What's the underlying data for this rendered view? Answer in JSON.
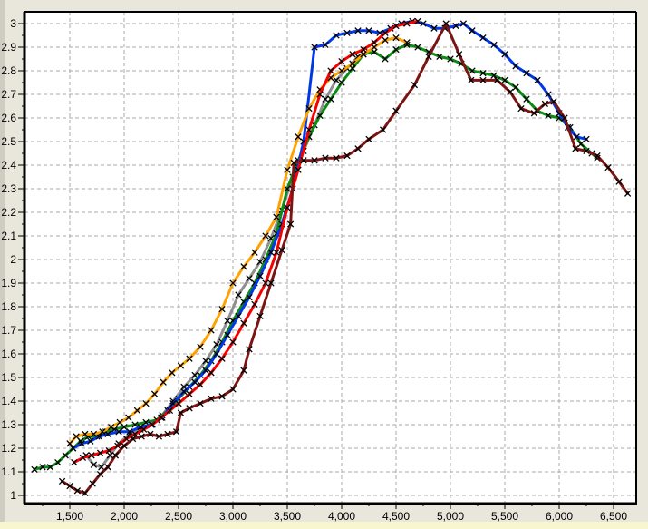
{
  "window": {
    "margin_color": "#e9e6dc",
    "left_edge_color": "#cfccc1",
    "bottom_strip_color": "#f7f6cf",
    "plot_background": "#ffffff",
    "grid_color": "#a8a8a8",
    "axis_color": "#000000",
    "marker_color": "#000000"
  },
  "chart_data": {
    "type": "line",
    "title": "",
    "xlabel": "",
    "ylabel": "",
    "grid": "dashed",
    "marker": "x",
    "legend": "none",
    "xlim": [
      1083,
      6708
    ],
    "ylim": [
      0.96,
      3.05
    ],
    "x_ticks": [
      1500,
      2000,
      2500,
      3000,
      3500,
      4000,
      4500,
      5000,
      5500,
      6000,
      6500
    ],
    "x_tick_labels": [
      "1,500",
      "2,000",
      "2,500",
      "3,000",
      "3,500",
      "4,000",
      "4,500",
      "5,000",
      "5,500",
      "6,000",
      "6,500"
    ],
    "x_minor_ticks": [
      1250,
      1750,
      2250,
      2750,
      3250,
      3750,
      4250,
      4750,
      5250,
      5750,
      6250
    ],
    "y_ticks": [
      3,
      2.9,
      2.8,
      2.7,
      2.6,
      2.5,
      2.4,
      2.3,
      2.2,
      2.1,
      2,
      1.9,
      1.8,
      1.7,
      1.6,
      1.5,
      1.4,
      1.3,
      1.2,
      1.1,
      1
    ],
    "y_tick_labels": [
      "3",
      "2.9",
      "2.8",
      "2.7",
      "2.6",
      "2.5",
      "2.4",
      "2.3",
      "2.2",
      "2.1",
      "2",
      "1.9",
      "1.8",
      "1.7",
      "1.6",
      "1.5",
      "1.4",
      "1.3",
      "1.2",
      "1.1",
      "1"
    ],
    "series": [
      {
        "name": "gray",
        "color": "#8f8f8f",
        "points": [
          [
            1650,
            1.17
          ],
          [
            1720,
            1.13
          ],
          [
            1790,
            1.12
          ],
          [
            1870,
            1.17
          ],
          [
            1950,
            1.22
          ],
          [
            2050,
            1.26
          ],
          [
            2150,
            1.28
          ],
          [
            2250,
            1.3
          ],
          [
            2350,
            1.34
          ],
          [
            2450,
            1.4
          ],
          [
            2550,
            1.46
          ],
          [
            2650,
            1.51
          ],
          [
            2750,
            1.57
          ],
          [
            2850,
            1.64
          ],
          [
            2950,
            1.74
          ],
          [
            3050,
            1.85
          ],
          [
            3150,
            1.92
          ],
          [
            3250,
            1.99
          ],
          [
            3350,
            2.09
          ],
          [
            3450,
            2.21
          ],
          [
            3550,
            2.35
          ],
          [
            3650,
            2.46
          ],
          [
            3750,
            2.57
          ],
          [
            3850,
            2.68
          ],
          [
            3950,
            2.76
          ],
          [
            4050,
            2.81
          ],
          [
            4150,
            2.86
          ],
          [
            4250,
            2.88
          ]
        ]
      },
      {
        "name": "green",
        "color": "#0d8c14",
        "points": [
          [
            1175,
            1.11
          ],
          [
            1250,
            1.12
          ],
          [
            1320,
            1.12
          ],
          [
            1390,
            1.14
          ],
          [
            1460,
            1.17
          ],
          [
            1530,
            1.2
          ],
          [
            1600,
            1.23
          ],
          [
            1670,
            1.25
          ],
          [
            1750,
            1.25
          ],
          [
            1830,
            1.27
          ],
          [
            1910,
            1.28
          ],
          [
            2000,
            1.29
          ],
          [
            2100,
            1.3
          ],
          [
            2200,
            1.31
          ],
          [
            2300,
            1.32
          ],
          [
            2400,
            1.36
          ],
          [
            2500,
            1.41
          ],
          [
            2600,
            1.46
          ],
          [
            2700,
            1.51
          ],
          [
            2800,
            1.57
          ],
          [
            2900,
            1.65
          ],
          [
            3000,
            1.74
          ],
          [
            3100,
            1.82
          ],
          [
            3200,
            1.9
          ],
          [
            3300,
            2.0
          ],
          [
            3400,
            2.11
          ],
          [
            3500,
            2.3
          ],
          [
            3600,
            2.42
          ],
          [
            3700,
            2.52
          ],
          [
            3800,
            2.61
          ],
          [
            3900,
            2.68
          ],
          [
            4000,
            2.75
          ],
          [
            4100,
            2.81
          ],
          [
            4200,
            2.87
          ],
          [
            4300,
            2.88
          ],
          [
            4400,
            2.85
          ],
          [
            4500,
            2.89
          ],
          [
            4600,
            2.91
          ],
          [
            4700,
            2.9
          ],
          [
            4800,
            2.88
          ],
          [
            4900,
            2.86
          ],
          [
            5000,
            2.85
          ],
          [
            5100,
            2.83
          ],
          [
            5200,
            2.8
          ],
          [
            5300,
            2.79
          ],
          [
            5400,
            2.78
          ],
          [
            5500,
            2.76
          ],
          [
            5600,
            2.73
          ],
          [
            5700,
            2.68
          ],
          [
            5800,
            2.63
          ],
          [
            5900,
            2.61
          ],
          [
            6000,
            2.6
          ],
          [
            6100,
            2.56
          ],
          [
            6200,
            2.49
          ],
          [
            6300,
            2.45
          ],
          [
            6350,
            2.43
          ]
        ]
      },
      {
        "name": "blue",
        "color": "#0038e8",
        "points": [
          [
            1530,
            1.2
          ],
          [
            1610,
            1.22
          ],
          [
            1690,
            1.23
          ],
          [
            1770,
            1.25
          ],
          [
            1850,
            1.26
          ],
          [
            1950,
            1.27
          ],
          [
            2050,
            1.27
          ],
          [
            2150,
            1.29
          ],
          [
            2250,
            1.3
          ],
          [
            2350,
            1.33
          ],
          [
            2450,
            1.39
          ],
          [
            2550,
            1.44
          ],
          [
            2650,
            1.48
          ],
          [
            2750,
            1.53
          ],
          [
            2850,
            1.6
          ],
          [
            2950,
            1.68
          ],
          [
            3050,
            1.76
          ],
          [
            3150,
            1.84
          ],
          [
            3250,
            1.93
          ],
          [
            3350,
            2.03
          ],
          [
            3450,
            2.15
          ],
          [
            3550,
            2.3
          ],
          [
            3650,
            2.5
          ],
          [
            3750,
            2.9
          ],
          [
            3850,
            2.91
          ],
          [
            3950,
            2.95
          ],
          [
            4050,
            2.96
          ],
          [
            4150,
            2.97
          ],
          [
            4250,
            2.97
          ],
          [
            4350,
            2.96
          ],
          [
            4450,
            2.98
          ],
          [
            4550,
            3.0
          ],
          [
            4650,
            3.01
          ],
          [
            4750,
            3.0
          ],
          [
            4850,
            2.98
          ],
          [
            4950,
            2.98
          ],
          [
            5050,
            2.99
          ],
          [
            5120,
            3.0
          ],
          [
            5200,
            2.97
          ],
          [
            5300,
            2.94
          ],
          [
            5400,
            2.91
          ],
          [
            5500,
            2.87
          ],
          [
            5600,
            2.82
          ],
          [
            5700,
            2.79
          ],
          [
            5800,
            2.76
          ],
          [
            5900,
            2.7
          ],
          [
            6000,
            2.62
          ],
          [
            6080,
            2.56
          ],
          [
            6160,
            2.52
          ],
          [
            6250,
            2.51
          ]
        ]
      },
      {
        "name": "orange",
        "color": "#ffa200",
        "points": [
          [
            1500,
            1.22
          ],
          [
            1560,
            1.25
          ],
          [
            1640,
            1.26
          ],
          [
            1720,
            1.26
          ],
          [
            1800,
            1.27
          ],
          [
            1880,
            1.29
          ],
          [
            1960,
            1.31
          ],
          [
            2040,
            1.33
          ],
          [
            2120,
            1.36
          ],
          [
            2200,
            1.39
          ],
          [
            2280,
            1.43
          ],
          [
            2360,
            1.48
          ],
          [
            2440,
            1.52
          ],
          [
            2520,
            1.55
          ],
          [
            2600,
            1.58
          ],
          [
            2700,
            1.63
          ],
          [
            2800,
            1.7
          ],
          [
            2900,
            1.79
          ],
          [
            3000,
            1.9
          ],
          [
            3100,
            1.97
          ],
          [
            3200,
            2.03
          ],
          [
            3300,
            2.1
          ],
          [
            3400,
            2.18
          ],
          [
            3500,
            2.38
          ],
          [
            3600,
            2.52
          ],
          [
            3700,
            2.64
          ],
          [
            3800,
            2.72
          ],
          [
            3900,
            2.77
          ],
          [
            4000,
            2.8
          ],
          [
            4100,
            2.83
          ],
          [
            4200,
            2.87
          ],
          [
            4300,
            2.9
          ],
          [
            4400,
            2.93
          ],
          [
            4500,
            2.94
          ],
          [
            4600,
            2.92
          ]
        ]
      },
      {
        "name": "red",
        "color": "#f80000",
        "points": [
          [
            1540,
            1.14
          ],
          [
            1620,
            1.16
          ],
          [
            1700,
            1.17
          ],
          [
            1780,
            1.18
          ],
          [
            1860,
            1.19
          ],
          [
            1940,
            1.21
          ],
          [
            2020,
            1.24
          ],
          [
            2100,
            1.26
          ],
          [
            2180,
            1.28
          ],
          [
            2260,
            1.3
          ],
          [
            2340,
            1.33
          ],
          [
            2420,
            1.36
          ],
          [
            2500,
            1.39
          ],
          [
            2600,
            1.43
          ],
          [
            2700,
            1.47
          ],
          [
            2800,
            1.52
          ],
          [
            2900,
            1.58
          ],
          [
            3000,
            1.65
          ],
          [
            3100,
            1.73
          ],
          [
            3200,
            1.81
          ],
          [
            3300,
            1.9
          ],
          [
            3400,
            2.03
          ],
          [
            3500,
            2.22
          ],
          [
            3600,
            2.38
          ],
          [
            3700,
            2.55
          ],
          [
            3800,
            2.7
          ],
          [
            3900,
            2.8
          ],
          [
            4000,
            2.84
          ],
          [
            4100,
            2.87
          ],
          [
            4200,
            2.89
          ],
          [
            4300,
            2.92
          ],
          [
            4400,
            2.96
          ],
          [
            4500,
            2.99
          ],
          [
            4600,
            3.0
          ],
          [
            4700,
            3.01
          ]
        ]
      },
      {
        "name": "dark-red",
        "color": "#7c1414",
        "points": [
          [
            1430,
            1.06
          ],
          [
            1500,
            1.04
          ],
          [
            1570,
            1.02
          ],
          [
            1640,
            1.01
          ],
          [
            1710,
            1.05
          ],
          [
            1780,
            1.09
          ],
          [
            1850,
            1.12
          ],
          [
            1920,
            1.17
          ],
          [
            2000,
            1.21
          ],
          [
            2080,
            1.24
          ],
          [
            2160,
            1.25
          ],
          [
            2240,
            1.26
          ],
          [
            2320,
            1.25
          ],
          [
            2400,
            1.26
          ],
          [
            2480,
            1.27
          ],
          [
            2520,
            1.35
          ],
          [
            2600,
            1.37
          ],
          [
            2700,
            1.39
          ],
          [
            2800,
            1.41
          ],
          [
            2900,
            1.42
          ],
          [
            3000,
            1.45
          ],
          [
            3100,
            1.53
          ],
          [
            3150,
            1.62
          ],
          [
            3250,
            1.76
          ],
          [
            3350,
            1.9
          ],
          [
            3450,
            2.04
          ],
          [
            3530,
            2.15
          ],
          [
            3560,
            2.41
          ],
          [
            3650,
            2.42
          ],
          [
            3750,
            2.42
          ],
          [
            3850,
            2.43
          ],
          [
            3950,
            2.43
          ],
          [
            4050,
            2.44
          ],
          [
            4150,
            2.47
          ],
          [
            4250,
            2.51
          ],
          [
            4380,
            2.55
          ],
          [
            4500,
            2.63
          ],
          [
            4670,
            2.74
          ],
          [
            4800,
            2.86
          ],
          [
            4960,
            3.0
          ],
          [
            5080,
            2.87
          ],
          [
            5190,
            2.76
          ],
          [
            5300,
            2.76
          ],
          [
            5430,
            2.76
          ],
          [
            5550,
            2.71
          ],
          [
            5650,
            2.64
          ],
          [
            5770,
            2.62
          ],
          [
            5870,
            2.66
          ],
          [
            5950,
            2.67
          ],
          [
            6050,
            2.6
          ],
          [
            6150,
            2.47
          ],
          [
            6250,
            2.46
          ],
          [
            6350,
            2.44
          ],
          [
            6450,
            2.39
          ],
          [
            6550,
            2.33
          ],
          [
            6630,
            2.28
          ]
        ]
      }
    ]
  }
}
